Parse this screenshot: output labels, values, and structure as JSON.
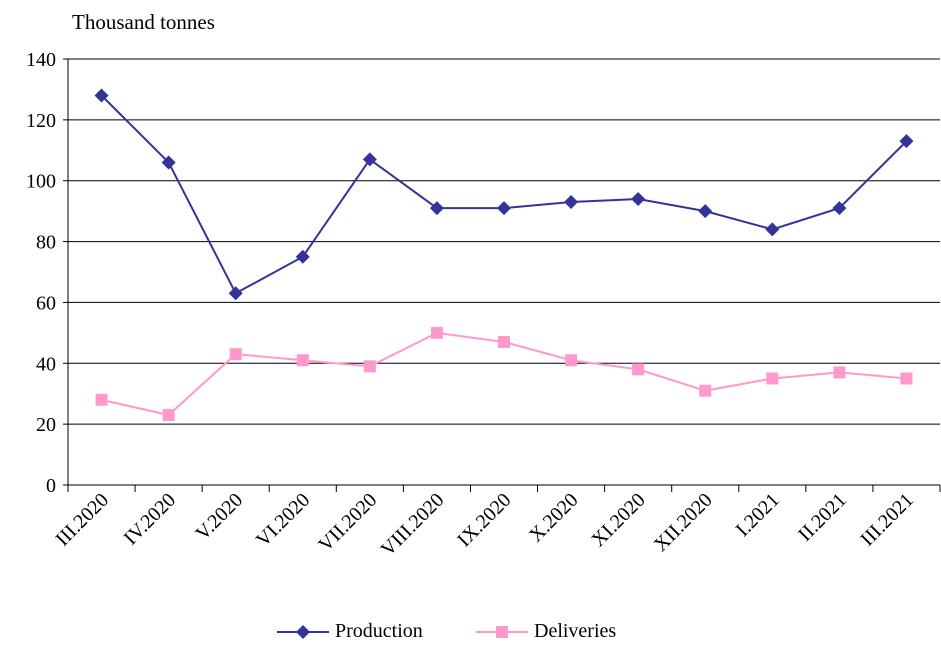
{
  "chart_data": {
    "type": "line",
    "unit_label": "Thousand tonnes",
    "categories": [
      "III.2020",
      "IV.2020",
      "V.2020",
      "VI.2020",
      "VII.2020",
      "VIII.2020",
      "IX.2020",
      "X.2020",
      "XI.2020",
      "XII.2020",
      "I.2021",
      "II.2021",
      "III.2021"
    ],
    "series": [
      {
        "name": "Production",
        "values": [
          128,
          106,
          63,
          75,
          107,
          91,
          91,
          93,
          94,
          90,
          84,
          91,
          113
        ],
        "color": "#333399",
        "marker": "diamond"
      },
      {
        "name": "Deliveries",
        "values": [
          28,
          23,
          43,
          41,
          39,
          50,
          47,
          41,
          38,
          31,
          35,
          37,
          35
        ],
        "color": "#ff99cc",
        "marker": "square"
      }
    ],
    "ylim": [
      0,
      140
    ],
    "yticks": [
      0,
      20,
      40,
      60,
      80,
      100,
      120,
      140
    ],
    "grid": true,
    "legend_position": "bottom-center"
  }
}
